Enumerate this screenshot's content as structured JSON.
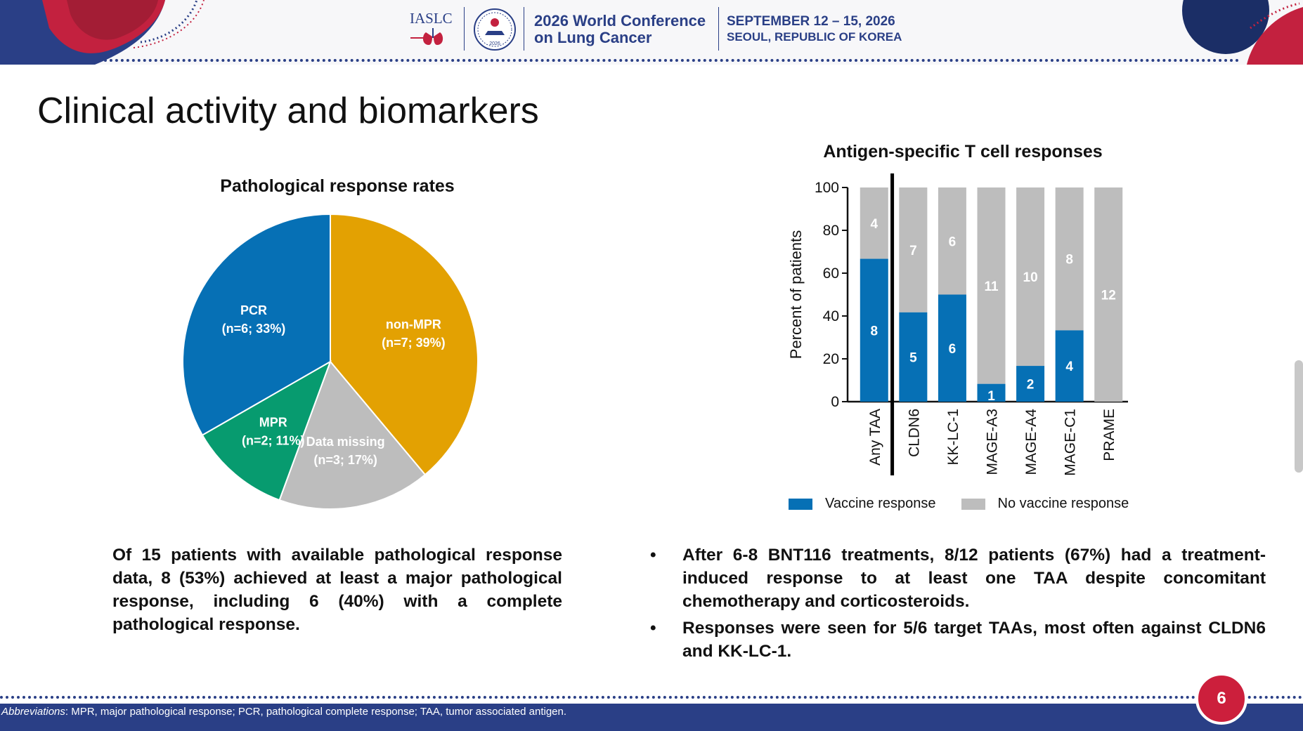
{
  "header": {
    "org": "IASLC",
    "conference_line1": "2026 World Conference",
    "conference_line2": "on Lung Cancer",
    "date": "SEPTEMBER 12 – 15, 2026",
    "location": "SEOUL, REPUBLIC OF KOREA",
    "seal_year": "2026"
  },
  "page_title": "Clinical activity and biomarkers",
  "chart_data": [
    {
      "type": "pie",
      "title": "Pathological response rates",
      "slices": [
        {
          "label": "non-MPR",
          "n": 7,
          "pct": 39,
          "value": 38.9,
          "detail": "(n=7; 39%)",
          "color": "#e3a102"
        },
        {
          "label": "Data missing",
          "n": 3,
          "pct": 17,
          "value": 16.7,
          "detail": "(n=3; 17%)",
          "color": "#bdbdbd"
        },
        {
          "label": "MPR",
          "n": 2,
          "pct": 11,
          "value": 11.1,
          "detail": "(n=2; 11%)",
          "color": "#079b6f"
        },
        {
          "label": "PCR",
          "n": 6,
          "pct": 33,
          "value": 33.3,
          "detail": "(n=6; 33%)",
          "color": "#0670b5"
        }
      ]
    },
    {
      "type": "bar",
      "stacked": true,
      "title": "Antigen-specific T cell responses",
      "ylabel": "Percent of patients",
      "ylim": [
        0,
        100
      ],
      "yticks": [
        0,
        20,
        40,
        60,
        80,
        100
      ],
      "categories": [
        "Any TAA",
        "CLDN6",
        "KK-LC-1",
        "MAGE-A3",
        "MAGE-A4",
        "MAGE-C1",
        "PRAME"
      ],
      "series": [
        {
          "name": "Vaccine response",
          "color": "#0670b5",
          "counts": [
            8,
            5,
            6,
            1,
            2,
            4,
            0
          ],
          "values": [
            66.7,
            41.7,
            50.0,
            8.3,
            16.7,
            33.3,
            0
          ]
        },
        {
          "name": "No vaccine response",
          "color": "#bdbdbd",
          "counts": [
            4,
            7,
            6,
            11,
            10,
            8,
            12
          ],
          "values": [
            33.3,
            58.3,
            50.0,
            91.7,
            83.3,
            66.7,
            100
          ]
        }
      ],
      "legend": "bottom"
    }
  ],
  "left_text": "Of 15 patients with available pathological response data, 8 (53%) achieved at least a major pathological response, including 6 (40%) with a complete pathological response.",
  "bullets": [
    {
      "marker": "•",
      "text": "After 6-8 BNT116 treatments, 8/12 patients (67%) had a treatment-induced response to at least one TAA despite concomitant chemotherapy and corticosteroids."
    },
    {
      "marker": "•",
      "text": "Responses were seen for 5/6 target TAAs, most often against CLDN6 and KK-LC-1."
    }
  ],
  "footer": {
    "abbrev_lead": "Abbreviations",
    "abbrev_text": ": MPR, major pathological response; PCR, pathological complete response; TAA, tumor associated antigen.",
    "page_number": "6"
  }
}
